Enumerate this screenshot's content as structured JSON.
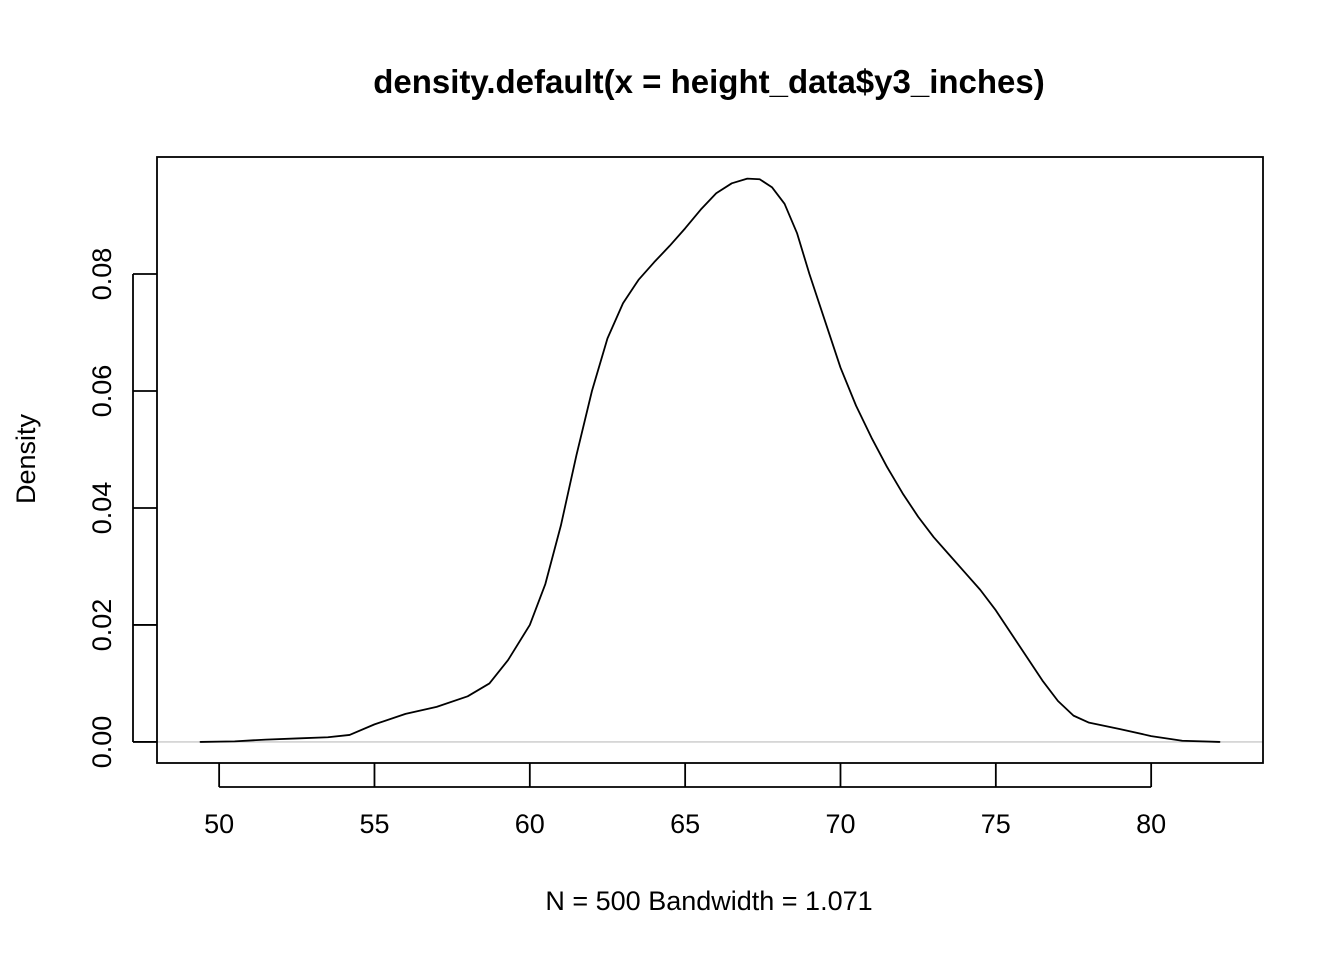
{
  "chart_data": {
    "type": "line",
    "title": "density.default(x = height_data$y3_inches)",
    "xlabel": "N = 500   Bandwidth = 1.071",
    "ylabel": "Density",
    "xlim": [
      48.0,
      83.6
    ],
    "ylim": [
      -0.0036,
      0.1
    ],
    "x_ticks": [
      50,
      55,
      60,
      65,
      70,
      75,
      80
    ],
    "y_ticks": [
      0.0,
      0.02,
      0.04,
      0.06,
      0.08
    ],
    "x_tick_labels": [
      "50",
      "55",
      "60",
      "65",
      "70",
      "75",
      "80"
    ],
    "y_tick_labels": [
      "0.00",
      "0.02",
      "0.04",
      "0.06",
      "0.08"
    ],
    "baseline": 0.0,
    "colors": {
      "line": "#000000",
      "baseline": "#bebebe",
      "frame": "#000000"
    },
    "series": [
      {
        "x": [
          49.4,
          50.5,
          51.5,
          52.5,
          53.5,
          54.2,
          55.0,
          56.0,
          57.0,
          58.0,
          58.7,
          59.3,
          60.0,
          60.5,
          61.0,
          61.5,
          62.0,
          62.5,
          63.0,
          63.5,
          64.0,
          64.5,
          65.0,
          65.5,
          66.0,
          66.5,
          67.0,
          67.4,
          67.8,
          68.2,
          68.6,
          69.0,
          69.5,
          70.0,
          70.5,
          71.0,
          71.5,
          72.0,
          72.5,
          73.0,
          73.5,
          74.0,
          74.5,
          75.0,
          75.5,
          76.0,
          76.5,
          77.0,
          77.5,
          78.0,
          79.0,
          80.0,
          81.0,
          82.2
        ],
        "y": [
          0.0,
          0.0001,
          0.0004,
          0.0006,
          0.0008,
          0.0012,
          0.003,
          0.0048,
          0.006,
          0.0078,
          0.01,
          0.014,
          0.02,
          0.027,
          0.037,
          0.049,
          0.06,
          0.069,
          0.075,
          0.079,
          0.082,
          0.0848,
          0.0878,
          0.091,
          0.0938,
          0.0955,
          0.0963,
          0.0962,
          0.0948,
          0.092,
          0.087,
          0.08,
          0.072,
          0.064,
          0.0575,
          0.052,
          0.047,
          0.0425,
          0.0385,
          0.035,
          0.032,
          0.029,
          0.026,
          0.0225,
          0.0185,
          0.0145,
          0.0105,
          0.007,
          0.0045,
          0.0033,
          0.0022,
          0.001,
          0.0002,
          0.0
        ]
      }
    ]
  }
}
